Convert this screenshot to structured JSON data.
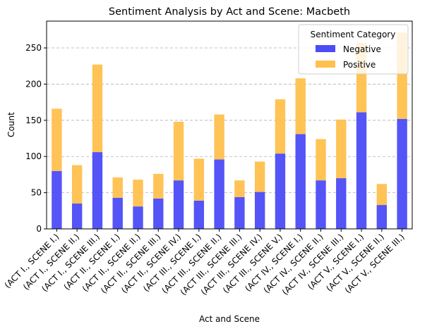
{
  "chart_data": {
    "type": "bar",
    "stacked": true,
    "title": "Sentiment Analysis by Act and Scene: Macbeth",
    "xlabel": "Act and Scene",
    "ylabel": "Count",
    "ylim": [
      0,
      287
    ],
    "yticks": [
      0,
      50,
      100,
      150,
      200,
      250
    ],
    "grid": "y-dashed",
    "legend": {
      "title": "Sentiment Category",
      "placement": "top-right"
    },
    "categories": [
      "(ACT I., SCENE I.)",
      "(ACT I., SCENE II.)",
      "(ACT I., SCENE III.)",
      "(ACT II., SCENE I.)",
      "(ACT II., SCENE II.)",
      "(ACT II., SCENE III.)",
      "(ACT II., SCENE IV.)",
      "(ACT III., SCENE I.)",
      "(ACT III., SCENE II.)",
      "(ACT III., SCENE III.)",
      "(ACT III., SCENE IV.)",
      "(ACT III., SCENE V.)",
      "(ACT IV., SCENE I.)",
      "(ACT IV., SCENE II.)",
      "(ACT IV., SCENE III.)",
      "(ACT V., SCENE I.)",
      "(ACT V., SCENE II.)",
      "(ACT V., SCENE III.)"
    ],
    "series": [
      {
        "name": "Negative",
        "color": "#4b4bf7",
        "values": [
          80,
          35,
          106,
          43,
          31,
          42,
          67,
          39,
          96,
          44,
          51,
          104,
          131,
          67,
          70,
          161,
          33,
          152
        ]
      },
      {
        "name": "Positive",
        "color": "#ffc04d",
        "values": [
          86,
          53,
          121,
          28,
          37,
          34,
          81,
          58,
          62,
          23,
          42,
          75,
          77,
          57,
          81,
          96,
          29,
          119
        ]
      }
    ]
  }
}
